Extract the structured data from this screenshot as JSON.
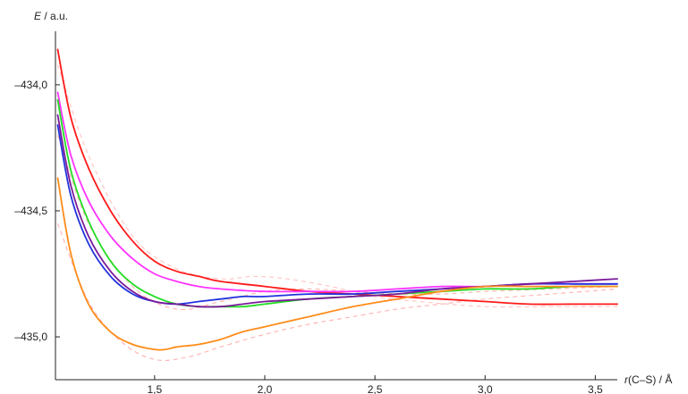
{
  "chart_data": {
    "type": "line",
    "xlabel": "r(C–S) / Å",
    "xlabel_parts": {
      "var": "r",
      "rest": "(C–S) / Å"
    },
    "ylabel": "E / a.u.",
    "ylabel_parts": {
      "var": "E",
      "rest": " / a.u."
    },
    "xlim": [
      1.05,
      3.6
    ],
    "ylim": [
      -435.17,
      -433.77
    ],
    "x_ticks": [
      {
        "value": 1.5,
        "label": "1,5"
      },
      {
        "value": 2.0,
        "label": "2,0"
      },
      {
        "value": 2.5,
        "label": "2,5"
      },
      {
        "value": 3.0,
        "label": "3,0"
      },
      {
        "value": 3.5,
        "label": "3,5"
      }
    ],
    "y_ticks": [
      {
        "value": -434.0,
        "label": "–434,0"
      },
      {
        "value": -434.5,
        "label": "–434,5"
      },
      {
        "value": -435.0,
        "label": "–435,0"
      }
    ],
    "grid": false,
    "legend": "none",
    "series": [
      {
        "color": "#ffb7b7",
        "style": "dashed",
        "x": [
          1.06,
          1.2,
          1.35,
          1.5,
          1.65,
          1.8,
          2.0,
          2.2,
          2.4,
          2.6,
          2.8,
          3.0,
          3.3,
          3.6
        ],
        "y": [
          -434.55,
          -434.86,
          -435.02,
          -435.09,
          -435.08,
          -435.04,
          -434.99,
          -434.95,
          -434.92,
          -434.89,
          -434.87,
          -434.85,
          -434.83,
          -434.81
        ]
      },
      {
        "color": "#ffb7b7",
        "style": "dashed",
        "x": [
          1.06,
          1.2,
          1.4,
          1.6,
          1.8,
          2.0,
          2.2,
          2.4,
          2.6,
          2.8,
          3.0,
          3.3,
          3.6
        ],
        "y": [
          -434.2,
          -434.55,
          -434.8,
          -434.89,
          -434.86,
          -434.82,
          -434.81,
          -434.82,
          -434.83,
          -434.83,
          -434.82,
          -434.81,
          -434.8
        ]
      },
      {
        "color": "#ffc8c8",
        "style": "dashed",
        "x": [
          1.06,
          1.2,
          1.4,
          1.6,
          1.8,
          1.95,
          2.1,
          2.3,
          2.5,
          2.7,
          3.0,
          3.3,
          3.6
        ],
        "y": [
          -433.92,
          -434.28,
          -434.6,
          -434.73,
          -434.77,
          -434.76,
          -434.77,
          -434.8,
          -434.84,
          -434.86,
          -434.88,
          -434.88,
          -434.88
        ]
      },
      {
        "color": "#ff1a1a",
        "style": "solid",
        "x": [
          1.06,
          1.12,
          1.2,
          1.3,
          1.4,
          1.5,
          1.6,
          1.7,
          1.8,
          2.0,
          2.2,
          2.4,
          2.6,
          2.8,
          3.0,
          3.2,
          3.4,
          3.6
        ],
        "y": [
          -433.86,
          -434.13,
          -434.33,
          -434.5,
          -434.62,
          -434.7,
          -434.74,
          -434.76,
          -434.78,
          -434.8,
          -434.82,
          -434.83,
          -434.84,
          -434.85,
          -434.86,
          -434.87,
          -434.87,
          -434.87
        ]
      },
      {
        "color": "#ff33ff",
        "style": "solid",
        "x": [
          1.06,
          1.12,
          1.2,
          1.3,
          1.4,
          1.5,
          1.6,
          1.7,
          1.8,
          2.0,
          2.2,
          2.4,
          2.6,
          2.8,
          3.0,
          3.2,
          3.4,
          3.6
        ],
        "y": [
          -434.03,
          -434.28,
          -434.46,
          -434.6,
          -434.69,
          -434.75,
          -434.78,
          -434.8,
          -434.81,
          -434.82,
          -434.82,
          -434.82,
          -434.81,
          -434.8,
          -434.8,
          -434.79,
          -434.79,
          -434.79
        ]
      },
      {
        "color": "#22dd22",
        "style": "solid",
        "x": [
          1.06,
          1.12,
          1.2,
          1.3,
          1.4,
          1.5,
          1.6,
          1.7,
          1.8,
          1.9,
          2.0,
          2.2,
          2.4,
          2.6,
          2.8,
          3.0,
          3.2,
          3.4,
          3.6
        ],
        "y": [
          -434.06,
          -434.34,
          -434.54,
          -434.7,
          -434.79,
          -434.84,
          -434.87,
          -434.88,
          -434.88,
          -434.88,
          -434.87,
          -434.85,
          -434.84,
          -434.83,
          -434.82,
          -434.81,
          -434.81,
          -434.8,
          -434.8
        ]
      },
      {
        "color": "#2233dd",
        "style": "solid",
        "x": [
          1.06,
          1.12,
          1.2,
          1.3,
          1.4,
          1.5,
          1.6,
          1.7,
          1.8,
          1.9,
          2.0,
          2.2,
          2.4,
          2.6,
          2.8,
          3.0,
          3.2,
          3.4,
          3.6
        ],
        "y": [
          -434.16,
          -434.44,
          -434.63,
          -434.76,
          -434.83,
          -434.86,
          -434.87,
          -434.86,
          -434.85,
          -434.84,
          -434.84,
          -434.83,
          -434.83,
          -434.82,
          -434.81,
          -434.8,
          -434.79,
          -434.79,
          -434.79
        ]
      },
      {
        "color": "#7a1a9a",
        "style": "solid",
        "x": [
          1.06,
          1.12,
          1.2,
          1.3,
          1.4,
          1.5,
          1.6,
          1.7,
          1.8,
          1.9,
          2.0,
          2.2,
          2.4,
          2.6,
          2.8,
          3.0,
          3.2,
          3.4,
          3.6
        ],
        "y": [
          -434.12,
          -434.4,
          -434.6,
          -434.74,
          -434.82,
          -434.86,
          -434.87,
          -434.88,
          -434.88,
          -434.87,
          -434.86,
          -434.85,
          -434.84,
          -434.83,
          -434.81,
          -434.8,
          -434.79,
          -434.78,
          -434.77
        ]
      },
      {
        "color": "#ff8c1a",
        "style": "solid",
        "x": [
          1.06,
          1.12,
          1.2,
          1.3,
          1.4,
          1.5,
          1.55,
          1.6,
          1.7,
          1.8,
          1.9,
          2.0,
          2.2,
          2.4,
          2.6,
          2.8,
          3.0,
          3.2,
          3.4,
          3.6
        ],
        "y": [
          -434.37,
          -434.67,
          -434.87,
          -434.98,
          -435.03,
          -435.05,
          -435.05,
          -435.04,
          -435.03,
          -435.01,
          -434.98,
          -434.96,
          -434.92,
          -434.88,
          -434.85,
          -434.82,
          -434.8,
          -434.8,
          -434.8,
          -434.8
        ]
      }
    ]
  }
}
